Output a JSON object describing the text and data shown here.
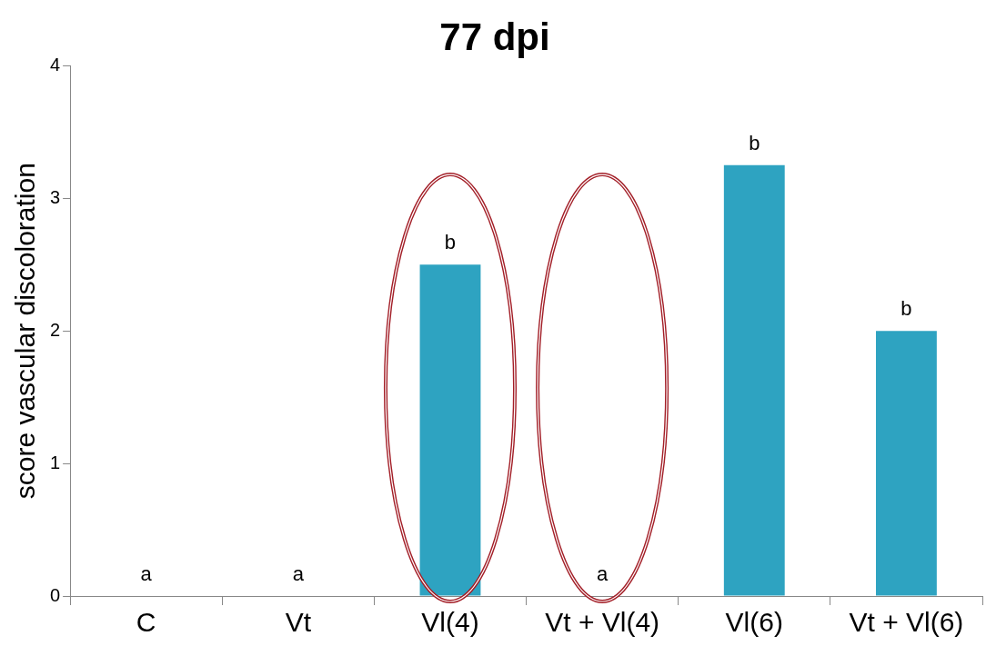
{
  "chart_data": {
    "type": "bar",
    "title": "77 dpi",
    "ylabel": "score vascular discoloration",
    "categories": [
      "C",
      "Vt",
      "Vl(4)",
      "Vt + Vl(4)",
      "Vl(6)",
      "Vt + Vl(6)"
    ],
    "values": [
      0,
      0,
      2.5,
      0,
      3.25,
      2.0
    ],
    "color": "#2ea3c1",
    "value_labels": [
      "a",
      "a",
      "b",
      "a",
      "b",
      "b"
    ],
    "ylim": [
      0,
      4
    ],
    "yticks": [
      0,
      1,
      2,
      3,
      4
    ],
    "grid": false
  }
}
